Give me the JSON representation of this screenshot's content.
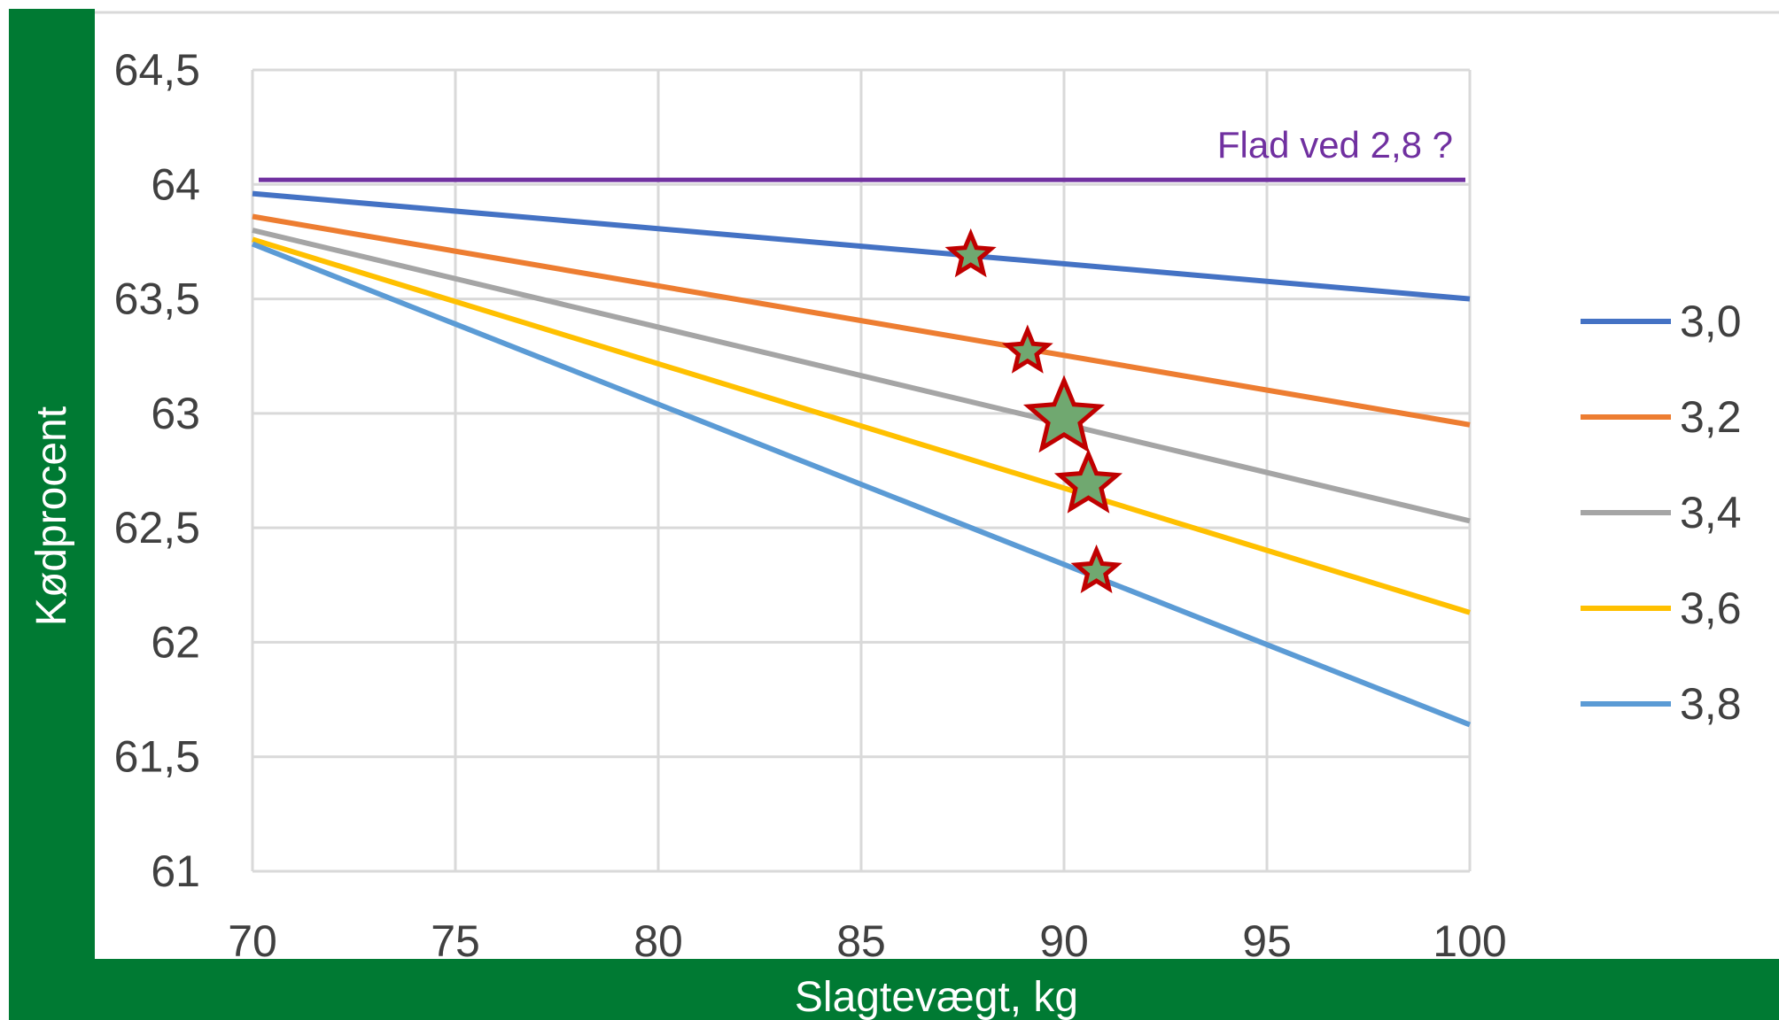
{
  "chart_data": {
    "type": "line",
    "title": "",
    "xlabel": "Slagtevægt, kg",
    "ylabel": "Kødprocent",
    "x_ticks": [
      "70",
      "75",
      "80",
      "85",
      "90",
      "95",
      "100"
    ],
    "y_ticks": [
      "64,5",
      "64",
      "63,5",
      "63",
      "62,5",
      "62",
      "61,5",
      "61"
    ],
    "xlim": [
      70,
      100
    ],
    "ylim": [
      61,
      64.5
    ],
    "grid": true,
    "legend_position": "right",
    "series": [
      {
        "name": "3,0",
        "color": "#4472C4",
        "x": [
          70,
          100
        ],
        "y": [
          63.96,
          63.5
        ]
      },
      {
        "name": "3,2",
        "color": "#ED7D31",
        "x": [
          70,
          100
        ],
        "y": [
          63.86,
          62.95
        ]
      },
      {
        "name": "3,4",
        "color": "#A5A5A5",
        "x": [
          70,
          100
        ],
        "y": [
          63.8,
          62.53
        ]
      },
      {
        "name": "3,6",
        "color": "#FFC000",
        "x": [
          70,
          100
        ],
        "y": [
          63.76,
          62.13
        ]
      },
      {
        "name": "3,8",
        "color": "#5B9BD5",
        "x": [
          70,
          100
        ],
        "y": [
          63.74,
          61.64
        ]
      }
    ],
    "reference_line": {
      "color": "#7030A0",
      "x": [
        70,
        100
      ],
      "y": [
        64.02,
        64.02
      ]
    },
    "annotations": [
      {
        "text": "Flad ved 2,8 ?",
        "color": "#7030A0"
      }
    ],
    "markers": [
      {
        "x": 87.7,
        "y": 63.69,
        "size": "small"
      },
      {
        "x": 89.1,
        "y": 63.27,
        "size": "small"
      },
      {
        "x": 90.0,
        "y": 62.98,
        "size": "large"
      },
      {
        "x": 90.6,
        "y": 62.69,
        "size": "medium"
      },
      {
        "x": 90.8,
        "y": 62.31,
        "size": "small"
      }
    ],
    "marker_style": {
      "fill": "#70A870",
      "stroke": "#C00000"
    },
    "frame_color": "#007A33"
  }
}
